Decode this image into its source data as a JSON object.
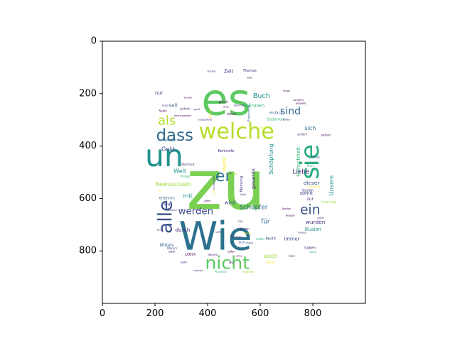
{
  "chart_data": {
    "type": "wordcloud",
    "title": "",
    "xlabel": "",
    "ylabel": "",
    "xlim": [
      0,
      1000
    ],
    "ylim": [
      1000,
      0
    ],
    "y_inverted": true,
    "grid": false,
    "x_ticks": [
      0,
      200,
      400,
      600,
      800
    ],
    "y_ticks": [
      0,
      200,
      400,
      600,
      800
    ],
    "x_tick_labels": [
      "0",
      "200",
      "400",
      "600",
      "800"
    ],
    "y_tick_labels": [
      "0",
      "200",
      "400",
      "600",
      "800"
    ],
    "colormap": "viridis",
    "words": [
      {
        "text": "zu",
        "x": 470,
        "y": 550,
        "size": 260,
        "color": "#7ad151",
        "rotate": 0
      },
      {
        "text": "es",
        "x": 470,
        "y": 225,
        "size": 165,
        "color": "#5ec962",
        "rotate": 0
      },
      {
        "text": "Wie",
        "x": 430,
        "y": 745,
        "size": 150,
        "color": "#2c728e",
        "rotate": 0
      },
      {
        "text": "un",
        "x": 235,
        "y": 440,
        "size": 115,
        "color": "#21918c",
        "rotate": 0
      },
      {
        "text": "welche",
        "x": 510,
        "y": 345,
        "size": 82,
        "color": "#b5de2b",
        "rotate": 0
      },
      {
        "text": "nicht",
        "x": 475,
        "y": 845,
        "size": 68,
        "color": "#5ec962",
        "rotate": 0
      },
      {
        "text": "sie",
        "x": 790,
        "y": 460,
        "size": 95,
        "color": "#28ae80",
        "rotate": -90
      },
      {
        "text": "alle",
        "x": 240,
        "y": 670,
        "size": 72,
        "color": "#3b528b",
        "rotate": -90
      },
      {
        "text": "dass",
        "x": 275,
        "y": 360,
        "size": 62,
        "color": "#31688e",
        "rotate": 0
      },
      {
        "text": "als",
        "x": 245,
        "y": 305,
        "size": 48,
        "color": "#b5de2b",
        "rotate": 0
      },
      {
        "text": "er",
        "x": 460,
        "y": 515,
        "size": 60,
        "color": "#2c728e",
        "rotate": 0
      },
      {
        "text": "ein",
        "x": 790,
        "y": 645,
        "size": 50,
        "color": "#3b528b",
        "rotate": 0
      },
      {
        "text": "werden",
        "x": 355,
        "y": 650,
        "size": 36,
        "color": "#3e4989",
        "rotate": 0
      },
      {
        "text": "sind",
        "x": 715,
        "y": 268,
        "size": 38,
        "color": "#31688e",
        "rotate": 0
      },
      {
        "text": "Schöpfer",
        "x": 575,
        "y": 635,
        "size": 24,
        "color": "#31688e",
        "rotate": 0
      },
      {
        "text": "Schöpfung",
        "x": 640,
        "y": 450,
        "size": 22,
        "color": "#21918c",
        "rotate": -90
      },
      {
        "text": "Menschheit",
        "x": 745,
        "y": 460,
        "size": 20,
        "color": "#35b779",
        "rotate": -90
      },
      {
        "text": "Buch",
        "x": 605,
        "y": 210,
        "size": 26,
        "color": "#21918c",
        "rotate": 0
      },
      {
        "text": "können",
        "x": 580,
        "y": 245,
        "size": 20,
        "color": "#35b779",
        "rotate": 0
      },
      {
        "text": "Liebe",
        "x": 755,
        "y": 500,
        "size": 24,
        "color": "#482878",
        "rotate": 0
      },
      {
        "text": "sich",
        "x": 790,
        "y": 330,
        "size": 22,
        "color": "#31688e",
        "rotate": 0
      },
      {
        "text": "Unsere",
        "x": 870,
        "y": 550,
        "size": 22,
        "color": "#21918c",
        "rotate": -90
      },
      {
        "text": "Geld",
        "x": 250,
        "y": 410,
        "size": 22,
        "color": "#3e4989",
        "rotate": 0
      },
      {
        "text": "Welt",
        "x": 295,
        "y": 495,
        "size": 22,
        "color": "#21918c",
        "rotate": 0
      },
      {
        "text": "Bewusstsein",
        "x": 270,
        "y": 545,
        "size": 22,
        "color": "#a0da39",
        "rotate": 0
      },
      {
        "text": "mit",
        "x": 325,
        "y": 590,
        "size": 22,
        "color": "#21918c",
        "rotate": 0
      },
      {
        "text": "wird",
        "x": 485,
        "y": 615,
        "size": 20,
        "color": "#3e4989",
        "rotate": 0
      },
      {
        "text": "für",
        "x": 620,
        "y": 690,
        "size": 24,
        "color": "#31688e",
        "rotate": 0
      },
      {
        "text": "durch",
        "x": 305,
        "y": 720,
        "size": 20,
        "color": "#482878",
        "rotate": 0
      },
      {
        "text": "auch",
        "x": 640,
        "y": 818,
        "size": 22,
        "color": "#a0da39",
        "rotate": 0
      },
      {
        "text": "dieser",
        "x": 795,
        "y": 540,
        "size": 20,
        "color": "#3b528b",
        "rotate": 0
      },
      {
        "text": "somit",
        "x": 775,
        "y": 580,
        "size": 18,
        "color": "#3e4989",
        "rotate": 0
      },
      {
        "text": "wurden",
        "x": 810,
        "y": 690,
        "size": 20,
        "color": "#472d7b",
        "rotate": 0
      },
      {
        "text": "Illusion",
        "x": 800,
        "y": 718,
        "size": 18,
        "color": "#21918c",
        "rotate": 0
      },
      {
        "text": "immer",
        "x": 720,
        "y": 755,
        "size": 18,
        "color": "#3e4989",
        "rotate": 0
      },
      {
        "text": "nur",
        "x": 215,
        "y": 198,
        "size": 18,
        "color": "#3e4989",
        "rotate": 0
      },
      {
        "text": "seit",
        "x": 270,
        "y": 245,
        "size": 18,
        "color": "#31688e",
        "rotate": 0
      },
      {
        "text": "Zeit",
        "x": 480,
        "y": 115,
        "size": 18,
        "color": "#482878",
        "rotate": 0
      },
      {
        "text": "gesamte",
        "x": 575,
        "y": 525,
        "size": 18,
        "color": "#472d7b",
        "rotate": -90
      },
      {
        "text": "Macht",
        "x": 465,
        "y": 470,
        "size": 18,
        "color": "#fde725",
        "rotate": -90
      },
      {
        "text": "Mittels",
        "x": 245,
        "y": 780,
        "size": 16,
        "color": "#31688e",
        "rotate": 0
      },
      {
        "text": "Mensch",
        "x": 255,
        "y": 380,
        "size": 14,
        "color": "#31688e",
        "rotate": 0
      },
      {
        "text": "Kontrolle",
        "x": 470,
        "y": 420,
        "size": 14,
        "color": "#482878",
        "rotate": 0
      },
      {
        "text": "Gedanken",
        "x": 660,
        "y": 300,
        "size": 14,
        "color": "#35b779",
        "rotate": 0
      },
      {
        "text": "einfach",
        "x": 660,
        "y": 275,
        "size": 14,
        "color": "#31688e",
        "rotate": 0
      },
      {
        "text": "zur",
        "x": 790,
        "y": 605,
        "size": 16,
        "color": "#482878",
        "rotate": 0
      },
      {
        "text": "lassen",
        "x": 780,
        "y": 570,
        "size": 14,
        "color": "#3e4989",
        "rotate": 0
      },
      {
        "text": "haben",
        "x": 790,
        "y": 790,
        "size": 14,
        "color": "#482878",
        "rotate": 0
      },
      {
        "text": "Recht",
        "x": 640,
        "y": 755,
        "size": 14,
        "color": "#3e4989",
        "rotate": 0
      },
      {
        "text": "Leben",
        "x": 335,
        "y": 815,
        "size": 14,
        "color": "#440154",
        "rotate": 0
      },
      {
        "text": "war",
        "x": 250,
        "y": 625,
        "size": 16,
        "color": "#3e4989",
        "rotate": 0
      },
      {
        "text": "erfahren",
        "x": 245,
        "y": 600,
        "size": 14,
        "color": "#31688e",
        "rotate": 0
      },
      {
        "text": "Meinung",
        "x": 530,
        "y": 545,
        "size": 14,
        "color": "#472d7b",
        "rotate": -90
      },
      {
        "text": "du",
        "x": 490,
        "y": 845,
        "size": 14,
        "color": "#482878",
        "rotate": 0
      },
      {
        "text": "Norm",
        "x": 640,
        "y": 845,
        "size": 12,
        "color": "#fde725",
        "rotate": 0
      },
      {
        "text": "Ursprung",
        "x": 860,
        "y": 615,
        "size": 12,
        "color": "#a0da39",
        "rotate": 0
      },
      {
        "text": "Thomas",
        "x": 560,
        "y": 115,
        "size": 13,
        "color": "#482878",
        "rotate": 0
      },
      {
        "text": "einem",
        "x": 755,
        "y": 240,
        "size": 12,
        "color": "#440154",
        "rotate": 0
      },
      {
        "text": "seiner",
        "x": 850,
        "y": 360,
        "size": 12,
        "color": "#440154",
        "rotate": 0
      },
      {
        "text": "Diese",
        "x": 810,
        "y": 445,
        "size": 12,
        "color": "#3e4989",
        "rotate": 0
      },
      {
        "text": "Plan",
        "x": 790,
        "y": 478,
        "size": 12,
        "color": "#35b779",
        "rotate": 0
      },
      {
        "text": "Erkenntnis",
        "x": 560,
        "y": 275,
        "size": 12,
        "color": "#31688e",
        "rotate": -90
      },
      {
        "text": "damit",
        "x": 490,
        "y": 280,
        "size": 12,
        "color": "#440154",
        "rotate": 0
      },
      {
        "text": "gleich",
        "x": 460,
        "y": 235,
        "size": 12,
        "color": "#440154",
        "rotate": 0
      },
      {
        "text": "jedoch",
        "x": 315,
        "y": 260,
        "size": 12,
        "color": "#482878",
        "rotate": 0
      },
      {
        "text": "Wissen",
        "x": 490,
        "y": 510,
        "size": 12,
        "color": "#a0da39",
        "rotate": 0
      },
      {
        "text": "nie",
        "x": 525,
        "y": 690,
        "size": 12,
        "color": "#3e4989",
        "rotate": 0
      },
      {
        "text": "um",
        "x": 440,
        "y": 730,
        "size": 12,
        "color": "#482878",
        "rotate": 0
      },
      {
        "text": "dich",
        "x": 530,
        "y": 770,
        "size": 12,
        "color": "#3e4989",
        "rotate": 0
      },
      {
        "text": "oder",
        "x": 490,
        "y": 805,
        "size": 12,
        "color": "#440154",
        "rotate": 0
      },
      {
        "text": "aber",
        "x": 265,
        "y": 805,
        "size": 12,
        "color": "#482878",
        "rotate": 0
      },
      {
        "text": "sein",
        "x": 310,
        "y": 845,
        "size": 12,
        "color": "#482878",
        "rotate": 0
      },
      {
        "text": "Kriege",
        "x": 315,
        "y": 515,
        "size": 11,
        "color": "#35b779",
        "rotate": 0
      },
      {
        "text": "Warum",
        "x": 265,
        "y": 790,
        "size": 11,
        "color": "#3e4989",
        "rotate": 0
      },
      {
        "text": "dienen",
        "x": 420,
        "y": 815,
        "size": 11,
        "color": "#482878",
        "rotate": 0
      },
      {
        "text": "Planeten",
        "x": 450,
        "y": 880,
        "size": 11,
        "color": "#35b779",
        "rotate": 0
      },
      {
        "text": "eigenen",
        "x": 555,
        "y": 880,
        "size": 11,
        "color": "#a0da39",
        "rotate": 0
      },
      {
        "text": "Themen",
        "x": 510,
        "y": 747,
        "size": 11,
        "color": "#482878",
        "rotate": 0
      },
      {
        "text": "selbst",
        "x": 600,
        "y": 755,
        "size": 11,
        "color": "#35b779",
        "rotate": 0
      },
      {
        "text": "ihren",
        "x": 560,
        "y": 770,
        "size": 11,
        "color": "#3e4989",
        "rotate": 0
      },
      {
        "text": "stehen",
        "x": 540,
        "y": 715,
        "size": 11,
        "color": "#482878",
        "rotate": 0
      },
      {
        "text": "schon",
        "x": 550,
        "y": 733,
        "size": 10,
        "color": "#fde725",
        "rotate": 0
      },
      {
        "text": "Wahrheit",
        "x": 325,
        "y": 470,
        "size": 11,
        "color": "#472d7b",
        "rotate": 0
      },
      {
        "text": "andern",
        "x": 760,
        "y": 355,
        "size": 11,
        "color": "#482878",
        "rotate": 0
      },
      {
        "text": "sondern",
        "x": 745,
        "y": 225,
        "size": 10,
        "color": "#440154",
        "rotate": 0
      },
      {
        "text": "Seele",
        "x": 230,
        "y": 265,
        "size": 11,
        "color": "#440154",
        "rotate": 0
      },
      {
        "text": "jeder",
        "x": 240,
        "y": 245,
        "size": 10,
        "color": "#482878",
        "rotate": 0
      },
      {
        "text": "man",
        "x": 470,
        "y": 250,
        "size": 10,
        "color": "#440154",
        "rotate": 0
      },
      {
        "text": "sollen",
        "x": 700,
        "y": 300,
        "size": 10,
        "color": "#482878",
        "rotate": 0
      },
      {
        "text": "Viele",
        "x": 610,
        "y": 330,
        "size": 11,
        "color": "#fde725",
        "rotate": 0
      },
      {
        "text": "Affen",
        "x": 400,
        "y": 610,
        "size": 10,
        "color": "#440154",
        "rotate": 0
      },
      {
        "text": "einer",
        "x": 830,
        "y": 675,
        "size": 10,
        "color": "#472d7b",
        "rotate": 0
      },
      {
        "text": "seine",
        "x": 800,
        "y": 805,
        "size": 10,
        "color": "#21918c",
        "rotate": 0
      },
      {
        "text": "erschaffen",
        "x": 805,
        "y": 555,
        "size": 10,
        "color": "#fde725",
        "rotate": 0
      },
      {
        "text": "Universum",
        "x": 425,
        "y": 540,
        "size": 10,
        "color": "#472d7b",
        "rotate": -90
      },
      {
        "text": "unserer",
        "x": 265,
        "y": 645,
        "size": 10,
        "color": "#482878",
        "rotate": 0
      },
      {
        "text": "Bildung",
        "x": 410,
        "y": 275,
        "size": 10,
        "color": "#fde725",
        "rotate": -90
      },
      {
        "text": "geht",
        "x": 360,
        "y": 260,
        "size": 10,
        "color": "#482878",
        "rotate": 0
      },
      {
        "text": "wurde",
        "x": 325,
        "y": 215,
        "size": 10,
        "color": "#440154",
        "rotate": 0
      },
      {
        "text": "Ihr",
        "x": 220,
        "y": 570,
        "size": 10,
        "color": "#fde725",
        "rotate": 0
      },
      {
        "text": "Gott",
        "x": 425,
        "y": 575,
        "size": 10,
        "color": "#fde725",
        "rotate": -90
      },
      {
        "text": "Jahrtausenden",
        "x": 305,
        "y": 285,
        "size": 9,
        "color": "#440154",
        "rotate": 0
      },
      {
        "text": "ausgebildet",
        "x": 390,
        "y": 300,
        "size": 9,
        "color": "#482878",
        "rotate": 0
      },
      {
        "text": "Denken",
        "x": 700,
        "y": 640,
        "size": 9,
        "color": "#440154",
        "rotate": 0
      },
      {
        "text": "erst",
        "x": 365,
        "y": 645,
        "size": 9,
        "color": "#440154",
        "rotate": 0
      },
      {
        "text": "keine",
        "x": 220,
        "y": 720,
        "size": 9,
        "color": "#482878",
        "rotate": 0
      },
      {
        "text": "Religion",
        "x": 715,
        "y": 665,
        "size": 9,
        "color": "#440154",
        "rotate": 0
      },
      {
        "text": "Frieden",
        "x": 760,
        "y": 730,
        "size": 9,
        "color": "#482878",
        "rotate": 0
      },
      {
        "text": "ohne",
        "x": 520,
        "y": 820,
        "size": 9,
        "color": "#440154",
        "rotate": 0
      },
      {
        "text": "machen",
        "x": 365,
        "y": 875,
        "size": 9,
        "color": "#482878",
        "rotate": 0
      },
      {
        "text": "leben",
        "x": 720,
        "y": 820,
        "size": 9,
        "color": "#440154",
        "rotate": 0
      },
      {
        "text": "mehr",
        "x": 560,
        "y": 140,
        "size": 9,
        "color": "#440154",
        "rotate": 0
      },
      {
        "text": "starken",
        "x": 415,
        "y": 115,
        "size": 9,
        "color": "#482878",
        "rotate": 0
      },
      {
        "text": "Dinge",
        "x": 700,
        "y": 190,
        "size": 9,
        "color": "#440154",
        "rotate": 0
      },
      {
        "text": "Wahrheit",
        "x": 520,
        "y": 245,
        "size": 9,
        "color": "#472d7b",
        "rotate": 0
      },
      {
        "text": "Geist",
        "x": 535,
        "y": 585,
        "size": 9,
        "color": "#482878",
        "rotate": 0
      }
    ]
  }
}
